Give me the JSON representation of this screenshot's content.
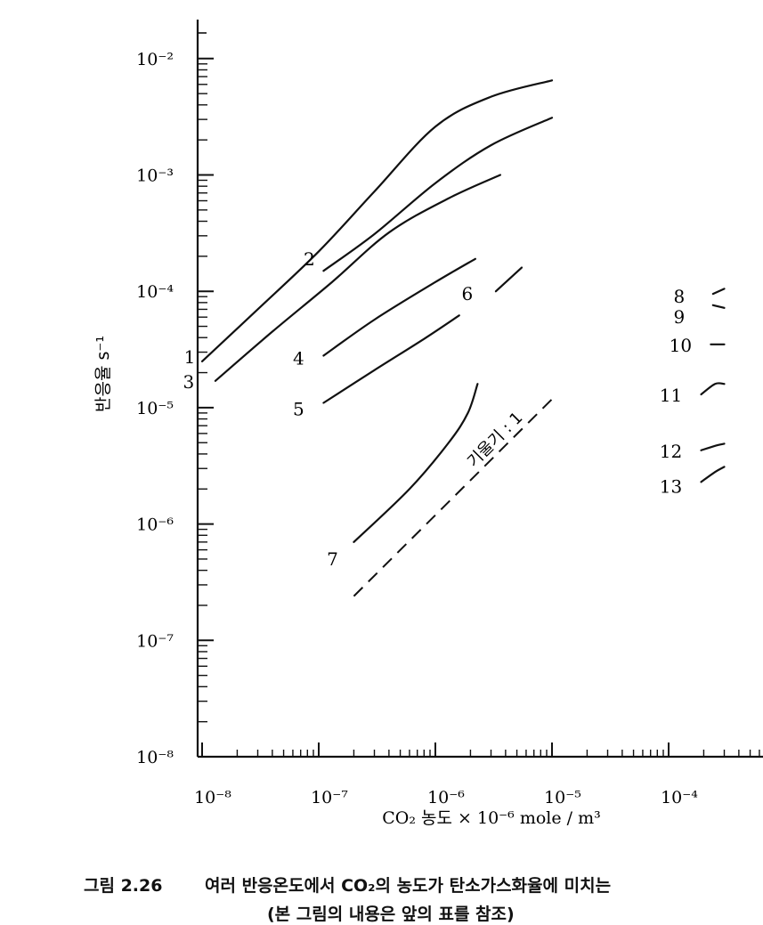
{
  "chart_data": {
    "type": "line",
    "title": "",
    "xlabel": "CO₂ 농도 × 10⁻⁶ mole / m³",
    "ylabel": "반응율 s⁻¹",
    "x_scale": "log",
    "y_scale": "log",
    "xlim": [
      1e-08,
      0.001
    ],
    "ylim": [
      1e-08,
      0.1
    ],
    "grid": false,
    "x_ticks": [
      "10⁻⁸",
      "10⁻⁷",
      "10⁻⁶",
      "10⁻⁵",
      "10⁻⁴"
    ],
    "y_ticks": [
      "10⁻⁸",
      "10⁻⁷",
      "10⁻⁶",
      "10⁻⁵",
      "10⁻⁴",
      "10⁻³",
      "10⁻²"
    ],
    "slope_label": "기울기 : 1",
    "series": [
      {
        "name": "1",
        "points": [
          [
            1e-08,
            2.5e-05
          ],
          [
            3e-08,
            7e-05
          ],
          [
            1e-07,
            0.00022
          ],
          [
            3e-07,
            0.00072
          ],
          [
            1e-06,
            0.0026
          ],
          [
            3e-06,
            0.0047
          ],
          [
            1e-05,
            0.0065
          ]
        ]
      },
      {
        "name": "2",
        "points": [
          [
            1.1e-07,
            0.00015
          ],
          [
            3e-07,
            0.00031
          ],
          [
            1e-06,
            0.00085
          ],
          [
            3e-06,
            0.0018
          ],
          [
            1e-05,
            0.0031
          ]
        ]
      },
      {
        "name": "3",
        "points": [
          [
            1.3e-08,
            1.7e-05
          ],
          [
            4e-08,
            4.5e-05
          ],
          [
            1.3e-07,
            0.00012
          ],
          [
            4e-07,
            0.00032
          ],
          [
            1.3e-06,
            0.00063
          ],
          [
            3.6e-06,
            0.001
          ]
        ]
      },
      {
        "name": "4",
        "points": [
          [
            1.1e-07,
            2.8e-05
          ],
          [
            3e-07,
            5.7e-05
          ],
          [
            1e-06,
            0.00012
          ],
          [
            2.2e-06,
            0.00019
          ]
        ]
      },
      {
        "name": "5",
        "points": [
          [
            1.1e-07,
            1.1e-05
          ],
          [
            3e-07,
            2.1e-05
          ],
          [
            8e-07,
            3.9e-05
          ],
          [
            1.6e-06,
            6.2e-05
          ]
        ]
      },
      {
        "name": "6",
        "points": [
          [
            3.3e-06,
            0.0001
          ],
          [
            5.5e-06,
            0.00016
          ]
        ]
      },
      {
        "name": "7",
        "points": [
          [
            2e-07,
            7e-07
          ],
          [
            6e-07,
            2e-06
          ],
          [
            1.3e-06,
            5e-06
          ],
          [
            1.9e-06,
            9e-06
          ],
          [
            2.3e-06,
            1.6e-05
          ]
        ]
      },
      {
        "name": "8",
        "points": [
          [
            0.00024,
            9.5e-05
          ],
          [
            0.0003,
            0.000105
          ]
        ]
      },
      {
        "name": "9",
        "points": [
          [
            0.00024,
            7.6e-05
          ],
          [
            0.0003,
            7.2e-05
          ]
        ]
      },
      {
        "name": "10",
        "points": [
          [
            0.00023,
            3.5e-05
          ],
          [
            0.0003,
            3.5e-05
          ]
        ]
      },
      {
        "name": "11",
        "points": [
          [
            0.00019,
            1.3e-05
          ],
          [
            0.00025,
            1.6e-05
          ],
          [
            0.0003,
            1.6e-05
          ]
        ]
      },
      {
        "name": "12",
        "points": [
          [
            0.00019,
            4.3e-06
          ],
          [
            0.00025,
            4.7e-06
          ],
          [
            0.0003,
            4.9e-06
          ]
        ]
      },
      {
        "name": "13",
        "points": [
          [
            0.00019,
            2.3e-06
          ],
          [
            0.00025,
            2.8e-06
          ],
          [
            0.0003,
            3.1e-06
          ]
        ]
      }
    ],
    "reference_line": {
      "style": "dashed",
      "slope": 1,
      "points": [
        [
          2e-07,
          2.4e-07
        ],
        [
          1.1e-05,
          1.3e-05
        ]
      ]
    }
  },
  "caption": {
    "figure": "그림 2.26",
    "text": "여러 반응온도에서 CO₂의 농도가 탄소가스화율에 미치는",
    "sub": "(본 그림의 내용은 앞의 표를 참조)"
  }
}
